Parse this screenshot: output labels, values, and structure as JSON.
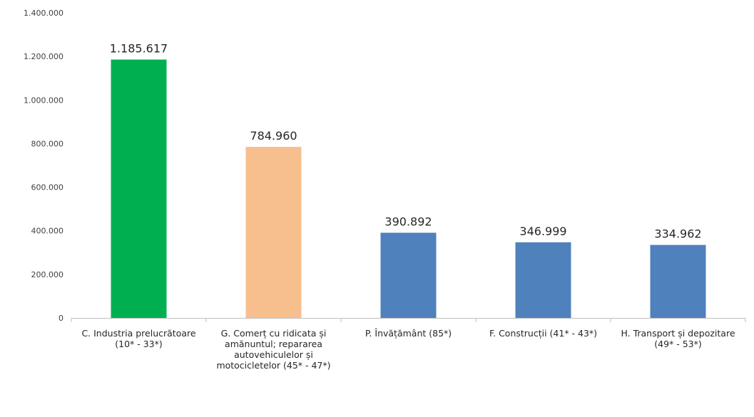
{
  "chart_data": {
    "type": "bar",
    "categories": [
      "C. Industria prelucrătoare (10* - 33*)",
      "G. Comerț cu ridicata și amănuntul; repararea autovehiculelor și motocicletelor (45* - 47*)",
      "P. Învățământ (85*)",
      "F. Construcții (41* - 43*)",
      "H. Transport și depozitare (49* - 53*)"
    ],
    "values": [
      1185617,
      784960,
      390892,
      346999,
      334962
    ],
    "value_labels": [
      "1.185.617",
      "784.960",
      "390.892",
      "346.999",
      "334.962"
    ],
    "bar_colors": [
      "#00b050",
      "#f8bf8e",
      "#4f81bd",
      "#4f81bd",
      "#4f81bd"
    ],
    "y_ticks": [
      0,
      200000,
      400000,
      600000,
      800000,
      1000000,
      1200000,
      1400000
    ],
    "y_tick_labels": [
      "0",
      "200.000",
      "400.000",
      "600.000",
      "800.000",
      "1.000.000",
      "1.200.000",
      "1.400.000"
    ],
    "ylim": [
      0,
      1400000
    ],
    "grid": false,
    "legend": "none"
  }
}
